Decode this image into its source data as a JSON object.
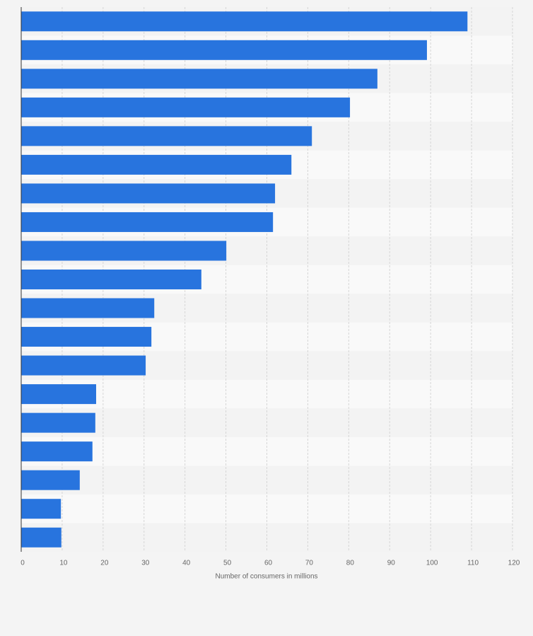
{
  "chart_data": {
    "type": "barh",
    "x_label": "Number of consumers in millions",
    "categories": [
      null,
      null,
      null,
      null,
      null,
      null,
      null,
      null,
      null,
      null,
      null,
      null,
      null,
      null,
      null,
      null,
      null,
      null,
      null
    ],
    "values": [
      109,
      99.1,
      87,
      80.3,
      71,
      66,
      62,
      61.5,
      50.1,
      44,
      32.5,
      31.8,
      30.4,
      18.3,
      18.1,
      17.4,
      14.3,
      9.7,
      9.8
    ],
    "color": "#2874de",
    "xlim": [
      0,
      120
    ],
    "xticks": [
      0,
      10,
      20,
      30,
      40,
      50,
      60,
      70,
      80,
      90,
      100,
      110,
      120
    ],
    "grid": true
  }
}
